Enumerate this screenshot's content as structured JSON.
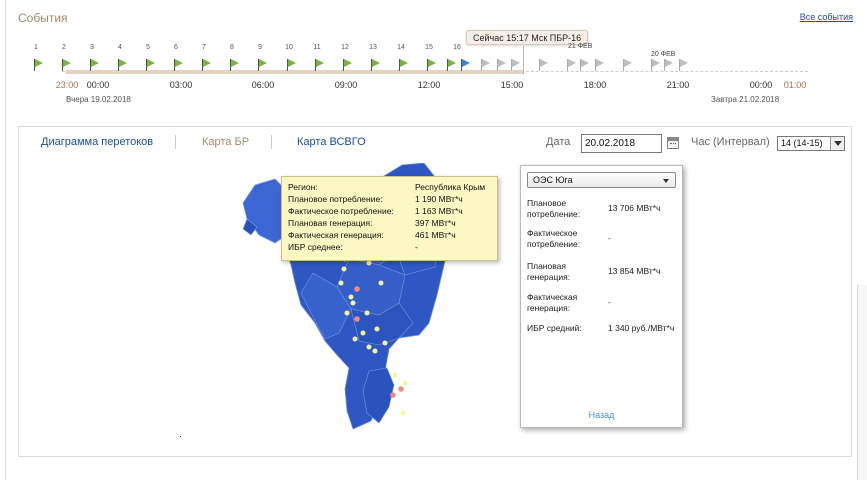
{
  "events": {
    "title": "События",
    "all_link": "Все события"
  },
  "timeline": {
    "numbers": [
      "1",
      "2",
      "3",
      "4",
      "5",
      "6",
      "7",
      "8",
      "9",
      "10",
      "11",
      "12",
      "13",
      "14",
      "15",
      "16"
    ],
    "now_label": "Сейчас 15:17 Мск ПБР-16",
    "date_feb21": "21 ФЕВ",
    "date_feb20": "20 ФЕВ",
    "times": [
      "23:00",
      "00:00",
      "03:00",
      "06:00",
      "09:00",
      "12:00",
      "15:00",
      "18:00",
      "21:00",
      "00:00",
      "01:00"
    ],
    "yesterday": "Вчера 19.02.2018",
    "tomorrow": "Завтра 21.02.2018"
  },
  "tabs": {
    "flows": "Диаграмма перетоков",
    "br_map": "Карта БР",
    "vsvgo_map": "Карта ВСВГО"
  },
  "controls": {
    "date_label": "Дата",
    "date_value": "20.02.2018",
    "hour_label": "Час (Интервал)",
    "hour_value": "14 (14-15)"
  },
  "tooltip": {
    "rows": [
      {
        "k": "Регион:",
        "v": "Республика Крым"
      },
      {
        "k": "Плановое потребление:",
        "v": "1 190 МВт*ч"
      },
      {
        "k": "Фактическое потребление:",
        "v": "1 163 МВт*ч"
      },
      {
        "k": "Плановая генерация:",
        "v": "397 МВт*ч"
      },
      {
        "k": "Фактическая генерация:",
        "v": "461 МВт*ч"
      },
      {
        "k": "ИБР среднее:",
        "v": "-"
      }
    ]
  },
  "info": {
    "oes": "ОЭС Юга",
    "plan_consumption_label": "Плановое потребление:",
    "plan_consumption_value": "13 706 МВт*ч",
    "fact_consumption_label": "Фактическое потребление:",
    "fact_consumption_value": "-",
    "plan_generation_label": "Плановая генерация:",
    "plan_generation_value": "13 854 МВт*ч",
    "fact_generation_label": "Фактическая генерация:",
    "fact_generation_value": "-",
    "ibr_label": "ИБР средний:",
    "ibr_value": "1 340 руб./МВт*ч",
    "back": "Назад"
  },
  "colors": {
    "map_blue": "#2e57c4",
    "flag_green": "#7cb342",
    "accent_brown": "#a58a6a",
    "link_blue": "#1f4e96"
  }
}
